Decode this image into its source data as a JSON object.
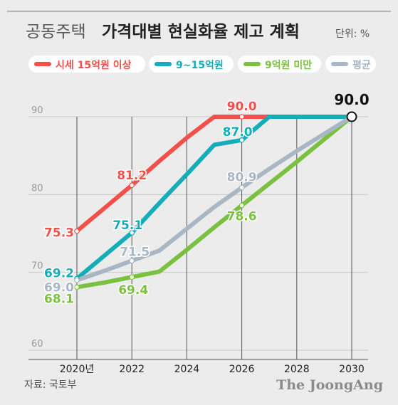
{
  "title_light": "공동주택",
  "title_bold": "가격대별 현실화율 제고 계획",
  "unit": "단위: %",
  "source": "자료: 국토부",
  "brand": "The JoongAng",
  "chart_data": {
    "type": "line",
    "x": [
      2020,
      2021,
      2022,
      2023,
      2024,
      2025,
      2026,
      2027,
      2028,
      2029,
      2030
    ],
    "xticks": [
      "2020년",
      "2022",
      "2024",
      "2026",
      "2028",
      "2030"
    ],
    "ylim": [
      60,
      90
    ],
    "yticks": [
      "60",
      "70",
      "80",
      "90"
    ],
    "grid": true,
    "legend_position": "top",
    "series": [
      {
        "name": "시세 15억원 이상",
        "color": "#f35049",
        "values": [
          75.3,
          78.25,
          81.2,
          84.3,
          87.3,
          90.0,
          90.0,
          90.0,
          90.0,
          90.0,
          90.0
        ],
        "labels": [
          {
            "x": 2020,
            "text": "75.3"
          },
          {
            "x": 2022,
            "text": "81.2"
          },
          {
            "x": 2026,
            "text": "90.0"
          }
        ]
      },
      {
        "name": "9~15억원",
        "color": "#14aebb",
        "values": [
          69.2,
          72.15,
          75.1,
          78.9,
          82.6,
          86.4,
          87.0,
          90.0,
          90.0,
          90.0,
          90.0
        ],
        "labels": [
          {
            "x": 2020,
            "text": "69.2"
          },
          {
            "x": 2022,
            "text": "75.1"
          },
          {
            "x": 2026,
            "text": "87.0"
          }
        ]
      },
      {
        "name": "9억원 미만",
        "color": "#7ac13f",
        "values": [
          68.1,
          68.7,
          69.4,
          70.1,
          72.9,
          75.8,
          78.6,
          81.4,
          84.2,
          87.1,
          90.0
        ],
        "labels": [
          {
            "x": 2020,
            "text": "68.1"
          },
          {
            "x": 2022,
            "text": "69.4"
          },
          {
            "x": 2026,
            "text": "78.6"
          }
        ]
      },
      {
        "name": "평균",
        "color": "#a9b7c5",
        "values": [
          69.0,
          70.2,
          71.5,
          72.8,
          75.6,
          78.4,
          80.9,
          83.3,
          85.6,
          87.8,
          90.0
        ],
        "labels": [
          {
            "x": 2020,
            "text": "69.0"
          },
          {
            "x": 2022,
            "text": "71.5"
          },
          {
            "x": 2026,
            "text": "80.9"
          }
        ]
      }
    ],
    "final_label": "90.0"
  }
}
